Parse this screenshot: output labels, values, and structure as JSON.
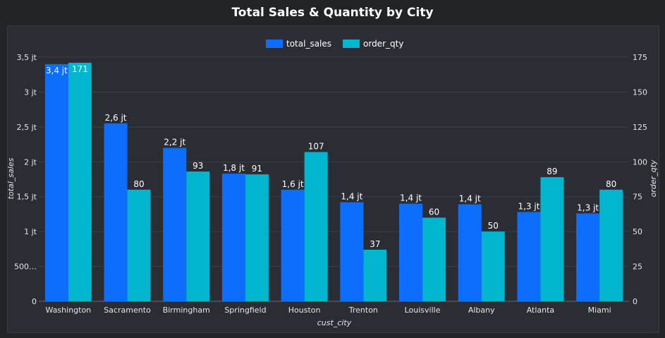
{
  "chart_data": {
    "type": "bar",
    "title": "Total Sales & Quantity by City",
    "xlabel": "cust_city",
    "ylabel": "total_sales",
    "y2label": "order_qty",
    "categories": [
      "Washington",
      "Sacramento",
      "Birmingham",
      "Springfield",
      "Houston",
      "Trenton",
      "Louisville",
      "Albany",
      "Atlanta",
      "Miami"
    ],
    "series": [
      {
        "name": "total_sales",
        "axis": "left",
        "color": "#0d6efd",
        "values": [
          3400000,
          2550000,
          2200000,
          1830000,
          1600000,
          1420000,
          1400000,
          1390000,
          1280000,
          1260000
        ],
        "labels": [
          "3,4 jt",
          "2,6 jt",
          "2,2 jt",
          "1,8 jt",
          "1,6 jt",
          "1,4 jt",
          "1,4 jt",
          "1,4 jt",
          "1,3 jt",
          "1,3 jt"
        ]
      },
      {
        "name": "order_qty",
        "axis": "right",
        "color": "#00b5cc",
        "values": [
          171,
          80,
          93,
          91,
          107,
          37,
          60,
          50,
          89,
          80
        ],
        "labels": [
          "171",
          "80",
          "93",
          "91",
          "107",
          "37",
          "60",
          "50",
          "89",
          "80"
        ]
      }
    ],
    "y_ticks": [
      "0",
      "500…",
      "1 jt",
      "1,5 jt",
      "2 jt",
      "2,5 jt",
      "3 jt",
      "3,5 jt"
    ],
    "y2_ticks": [
      "0",
      "25",
      "50",
      "75",
      "100",
      "125",
      "150",
      "175"
    ],
    "ylim": [
      0,
      3500000
    ],
    "y2lim": [
      0,
      175
    ],
    "grid": true,
    "legend_position": "top-center"
  }
}
